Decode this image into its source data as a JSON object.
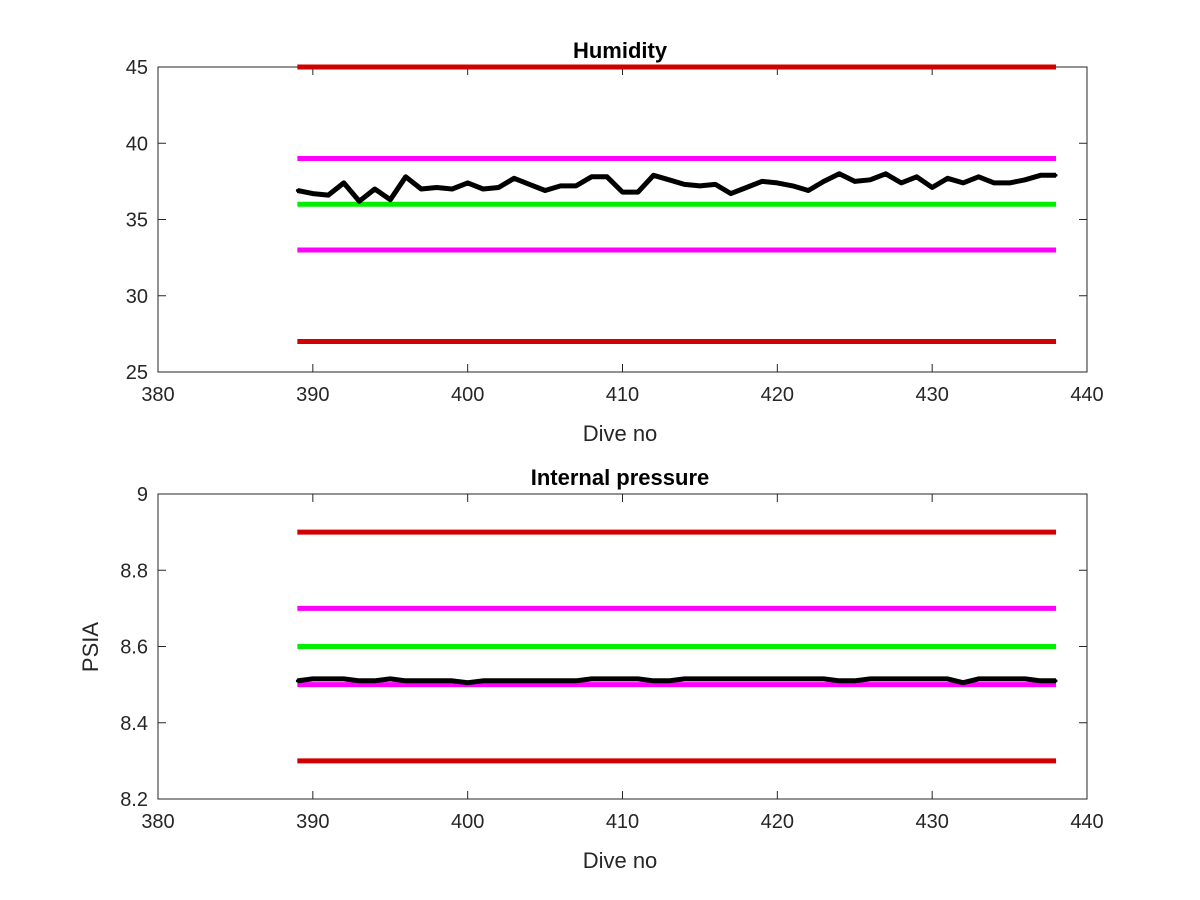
{
  "chart_data": [
    {
      "type": "line",
      "title": "Humidity",
      "xlabel": "Dive no",
      "ylabel": "",
      "xlim": [
        380,
        440
      ],
      "ylim": [
        25,
        45
      ],
      "xticks": [
        380,
        390,
        400,
        410,
        420,
        430,
        440
      ],
      "yticks": [
        25,
        30,
        35,
        40,
        45
      ],
      "grid": false,
      "reference_lines": [
        {
          "y": 45,
          "x": [
            389,
            438
          ],
          "color": "#d00000"
        },
        {
          "y": 39,
          "x": [
            389,
            438
          ],
          "color": "#ff00ff"
        },
        {
          "y": 36,
          "x": [
            389,
            438
          ],
          "color": "#00ee00"
        },
        {
          "y": 33,
          "x": [
            389,
            438
          ],
          "color": "#ff00ff"
        },
        {
          "y": 27,
          "x": [
            389,
            438
          ],
          "color": "#d00000"
        }
      ],
      "series": [
        {
          "color": "#000000",
          "x": [
            389,
            390,
            391,
            392,
            393,
            394,
            395,
            396,
            397,
            398,
            399,
            400,
            401,
            402,
            403,
            404,
            405,
            406,
            407,
            408,
            409,
            410,
            411,
            412,
            413,
            414,
            415,
            416,
            417,
            418,
            419,
            420,
            421,
            422,
            423,
            424,
            425,
            426,
            427,
            428,
            429,
            430,
            431,
            432,
            433,
            434,
            435,
            436,
            437,
            438
          ],
          "values": [
            36.9,
            36.7,
            36.6,
            37.4,
            36.2,
            37.0,
            36.3,
            37.8,
            37.0,
            37.1,
            37.0,
            37.4,
            37.0,
            37.1,
            37.7,
            37.3,
            36.9,
            37.2,
            37.2,
            37.8,
            37.8,
            36.8,
            36.8,
            37.9,
            37.6,
            37.3,
            37.2,
            37.3,
            36.7,
            37.1,
            37.5,
            37.4,
            37.2,
            36.9,
            37.5,
            38.0,
            37.5,
            37.6,
            38.0,
            37.4,
            37.8,
            37.1,
            37.7,
            37.4,
            37.8,
            37.4,
            37.4,
            37.6,
            37.9,
            37.9
          ]
        }
      ]
    },
    {
      "type": "line",
      "title": "Internal pressure",
      "xlabel": "Dive no",
      "ylabel": "PSIA",
      "xlim": [
        380,
        440
      ],
      "ylim": [
        8.2,
        9.0
      ],
      "xticks": [
        380,
        390,
        400,
        410,
        420,
        430,
        440
      ],
      "yticks": [
        8.2,
        8.4,
        8.6,
        8.8,
        9
      ],
      "ytick_labels": [
        "8.2",
        "8.4",
        "8.6",
        "8.8",
        "9"
      ],
      "grid": false,
      "reference_lines": [
        {
          "y": 8.9,
          "x": [
            389,
            438
          ],
          "color": "#d00000"
        },
        {
          "y": 8.7,
          "x": [
            389,
            438
          ],
          "color": "#ff00ff"
        },
        {
          "y": 8.6,
          "x": [
            389,
            438
          ],
          "color": "#00ee00"
        },
        {
          "y": 8.5,
          "x": [
            389,
            438
          ],
          "color": "#ff00ff"
        },
        {
          "y": 8.3,
          "x": [
            389,
            438
          ],
          "color": "#d00000"
        }
      ],
      "series": [
        {
          "color": "#000000",
          "x": [
            389,
            390,
            391,
            392,
            393,
            394,
            395,
            396,
            397,
            398,
            399,
            400,
            401,
            402,
            403,
            404,
            405,
            406,
            407,
            408,
            409,
            410,
            411,
            412,
            413,
            414,
            415,
            416,
            417,
            418,
            419,
            420,
            421,
            422,
            423,
            424,
            425,
            426,
            427,
            428,
            429,
            430,
            431,
            432,
            433,
            434,
            435,
            436,
            437,
            438
          ],
          "values": [
            8.51,
            8.515,
            8.515,
            8.515,
            8.51,
            8.51,
            8.515,
            8.51,
            8.51,
            8.51,
            8.51,
            8.505,
            8.51,
            8.51,
            8.51,
            8.51,
            8.51,
            8.51,
            8.51,
            8.515,
            8.515,
            8.515,
            8.515,
            8.51,
            8.51,
            8.515,
            8.515,
            8.515,
            8.515,
            8.515,
            8.515,
            8.515,
            8.515,
            8.515,
            8.515,
            8.51,
            8.51,
            8.515,
            8.515,
            8.515,
            8.515,
            8.515,
            8.515,
            8.505,
            8.515,
            8.515,
            8.515,
            8.515,
            8.51,
            8.51
          ]
        }
      ]
    }
  ]
}
